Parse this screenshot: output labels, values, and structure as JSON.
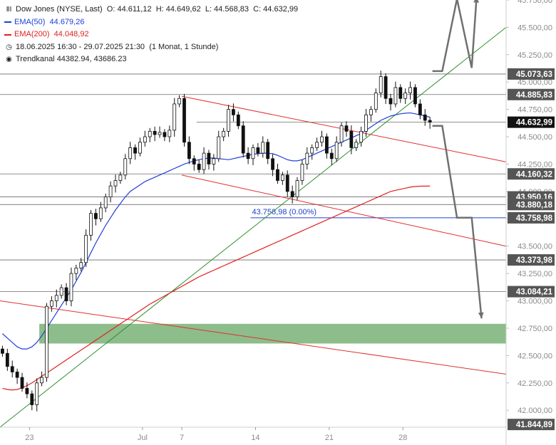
{
  "header": {
    "symbol_icon": "candlestick-icon",
    "title": "Dow Jones (NYSE, Last)",
    "ohlc": {
      "o": "O: 44.611,12",
      "h": "H: 44.649,62",
      "l": "L: 44.568,83",
      "c": "C: 44.632,99"
    },
    "ema50": {
      "label": "EMA(50)",
      "value": "44.679,26",
      "color": "#1e3fd8"
    },
    "ema200": {
      "label": "EMA(200)",
      "value": "44.048,92",
      "color": "#e02020"
    },
    "period": "18.06.2025 16:30 - 29.07.2025 21:30",
    "interval": "(1 Monat, 1 Stunde)",
    "trend_icon": "target-icon",
    "trend": "Trendkanal",
    "trend_values": "44382.94, 43686.23"
  },
  "chart_data": {
    "type": "candlestick",
    "ylim": [
      41845,
      45750
    ],
    "y_ticks": [
      {
        "v": 45750,
        "label": "45.750,00"
      },
      {
        "v": 45500,
        "label": "45.500,00"
      },
      {
        "v": 45250,
        "label": "45.250,00"
      },
      {
        "v": 45000,
        "label": "45.000,00"
      },
      {
        "v": 44750,
        "label": "44.750,00"
      },
      {
        "v": 44500,
        "label": "44.500,00"
      },
      {
        "v": 44250,
        "label": "44.250,00"
      },
      {
        "v": 44000,
        "label": "44.000,00"
      },
      {
        "v": 43750,
        "label": "43.750,00"
      },
      {
        "v": 43500,
        "label": "43.500,00"
      },
      {
        "v": 43250,
        "label": "43.250,00"
      },
      {
        "v": 43000,
        "label": "43.000,00"
      },
      {
        "v": 42750,
        "label": "42.750,00"
      },
      {
        "v": 42500,
        "label": "42.500,00"
      },
      {
        "v": 42250,
        "label": "42.250,00"
      },
      {
        "v": 42000,
        "label": "42.000,00"
      }
    ],
    "x_ticks": [
      {
        "t": 6,
        "label": "23"
      },
      {
        "t": 29,
        "label": "Jul"
      },
      {
        "t": 37,
        "label": "7"
      },
      {
        "t": 52,
        "label": "14"
      },
      {
        "t": 67,
        "label": "21"
      },
      {
        "t": 82,
        "label": "28"
      }
    ],
    "horizontal_levels": [
      {
        "v": 45073.63,
        "label": "45.073,63"
      },
      {
        "v": 44885.83,
        "label": "44.885,83"
      },
      {
        "v": 44160.32,
        "label": "44.160,32"
      },
      {
        "v": 43950.16,
        "label": "43.950,16"
      },
      {
        "v": 43880.18,
        "label": "43.880,18"
      },
      {
        "v": 43373.98,
        "label": "43.373,98"
      },
      {
        "v": 43084.21,
        "label": "43.084,21"
      }
    ],
    "last_price": {
      "v": 44632.99,
      "label": "44.632,99"
    },
    "extra_level": {
      "v": 43758.98,
      "label": "43.758,98",
      "annotation": "43.758,98 (0.00%)"
    },
    "bottom_label": {
      "v": 41844.89,
      "label": "41.844,89"
    },
    "support_zone": [
      42610,
      42790
    ],
    "closes": [
      42520,
      42400,
      42350,
      42300,
      42200,
      42150,
      42050,
      42250,
      42300,
      42950,
      43000,
      43050,
      43120,
      43000,
      43250,
      43300,
      43350,
      43600,
      43800,
      43750,
      43850,
      43950,
      44050,
      44100,
      44150,
      44300,
      44400,
      44350,
      44450,
      44500,
      44550,
      44520,
      44540,
      44500,
      44560,
      44800,
      44850,
      44450,
      44300,
      44250,
      44200,
      44350,
      44250,
      44300,
      44500,
      44550,
      44750,
      44700,
      44600,
      44350,
      44300,
      44400,
      44350,
      44450,
      44300,
      44200,
      44100,
      44150,
      44000,
      43950,
      44100,
      44250,
      44350,
      44400,
      44450,
      44500,
      44350,
      44300,
      44450,
      44600,
      44550,
      44400,
      44450,
      44550,
      44700,
      44750,
      44900,
      45050,
      44850,
      44800,
      44950,
      44850,
      44900,
      44950,
      44800,
      44700,
      44650,
      44632.99
    ],
    "ema50": [
      42700,
      42660,
      42620,
      42580,
      42560,
      42560,
      42580,
      42620,
      42680,
      42750,
      42820,
      42890,
      42960,
      43030,
      43100,
      43180,
      43260,
      43350,
      43440,
      43530,
      43610,
      43690,
      43760,
      43830,
      43890,
      43950,
      44000,
      44030,
      44060,
      44090,
      44110,
      44130,
      44150,
      44170,
      44190,
      44210,
      44230,
      44250,
      44265,
      44280,
      44290,
      44300,
      44305,
      44305,
      44300,
      44295,
      44290,
      44300,
      44310,
      44320,
      44330,
      44340,
      44345,
      44350,
      44350,
      44345,
      44330,
      44310,
      44290,
      44280,
      44280,
      44290,
      44310,
      44330,
      44350,
      44370,
      44390,
      44410,
      44430,
      44450,
      44470,
      44490,
      44510,
      44530,
      44560,
      44590,
      44620,
      44650,
      44670,
      44690,
      44700,
      44710,
      44715,
      44718,
      44710,
      44700,
      44690,
      44679.26
    ],
    "ema200": [
      42200,
      42190,
      42185,
      42190,
      42205,
      42225,
      42250,
      42280,
      42310,
      42340,
      42370,
      42400,
      42430,
      42460,
      42490,
      42520,
      42550,
      42580,
      42610,
      42640,
      42670,
      42700,
      42730,
      42760,
      42790,
      42820,
      42850,
      42880,
      42910,
      42940,
      42970,
      42995,
      43020,
      43045,
      43070,
      43095,
      43120,
      43145,
      43170,
      43195,
      43220,
      43240,
      43260,
      43280,
      43300,
      43320,
      43340,
      43360,
      43380,
      43400,
      43420,
      43440,
      43460,
      43480,
      43500,
      43520,
      43540,
      43560,
      43580,
      43600,
      43620,
      43640,
      43660,
      43680,
      43700,
      43720,
      43740,
      43760,
      43780,
      43800,
      43820,
      43840,
      43860,
      43880,
      43900,
      43920,
      43940,
      43960,
      43980,
      44000,
      44010,
      44020,
      44030,
      44040,
      44045,
      44048,
      44049,
      44048.92
    ],
    "lines": [
      {
        "name": "channel-top",
        "color": "#e03030",
        "p1": [
          37,
          44870
        ],
        "p2": [
          103,
          44270
        ]
      },
      {
        "name": "channel-bottom",
        "color": "#e03030",
        "p1": [
          37,
          44150
        ],
        "p2": [
          103,
          43500
        ]
      },
      {
        "name": "long-downtrend",
        "color": "#e03030",
        "p1": [
          0,
          43000
        ],
        "p2": [
          103,
          42330
        ]
      },
      {
        "name": "uptrend",
        "color": "#2f8f2f",
        "p1": [
          0,
          41845
        ],
        "p2": [
          103,
          45500
        ]
      }
    ],
    "scenario_path": {
      "color": "#707070",
      "up": [
        [
          88,
          45100
        ],
        [
          90,
          45100
        ],
        [
          93,
          45760
        ],
        [
          96,
          45130
        ],
        [
          97,
          45780
        ]
      ],
      "down": [
        [
          88,
          44600
        ],
        [
          90,
          44600
        ],
        [
          93,
          43760
        ],
        [
          96,
          43760
        ],
        [
          98,
          42840
        ]
      ]
    }
  }
}
